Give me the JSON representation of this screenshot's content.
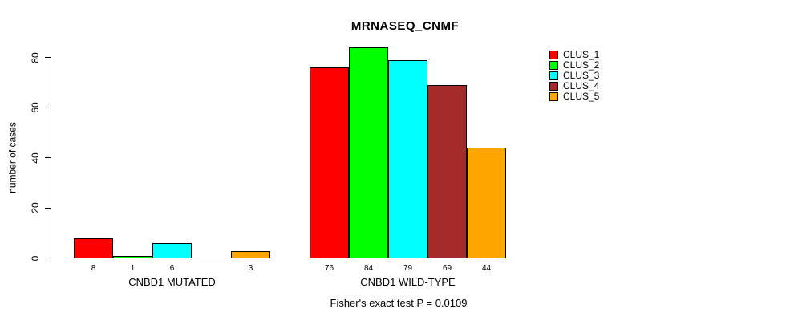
{
  "chart_data": {
    "type": "bar",
    "title": "MRNASEQ_CNMF",
    "categories": [
      "CNBD1 MUTATED",
      "CNBD1 WILD-TYPE"
    ],
    "series": [
      {
        "name": "CLUS_1",
        "color": "#FF0000",
        "values": [
          8,
          76
        ]
      },
      {
        "name": "CLUS_2",
        "color": "#00FF00",
        "values": [
          1,
          84
        ]
      },
      {
        "name": "CLUS_3",
        "color": "#00FFFF",
        "values": [
          6,
          79
        ]
      },
      {
        "name": "CLUS_4",
        "color": "#A52A2A",
        "values": [
          0,
          69
        ]
      },
      {
        "name": "CLUS_5",
        "color": "#FFA500",
        "values": [
          3,
          44
        ]
      }
    ],
    "ylabel": "number of cases",
    "xlabel": "",
    "ylim": [
      0,
      80
    ],
    "y_ticks": [
      0,
      20,
      40,
      60,
      80
    ],
    "grid": false,
    "legend_position": "right-outside",
    "bar_value_labels": "counts shown below each bar; zero-value bars have no label",
    "annotation": "Fisher's exact test P = 0.0109",
    "p_value": 0.0109
  }
}
